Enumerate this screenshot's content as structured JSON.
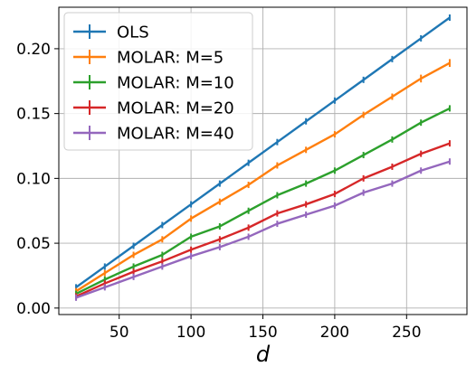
{
  "chart_data": {
    "type": "line",
    "title": "",
    "xlabel": "d",
    "ylabel": "",
    "xlim": [
      8,
      292
    ],
    "ylim": [
      -0.005,
      0.232
    ],
    "grid": true,
    "legend_position": "top-left",
    "x_ticks": [
      50,
      100,
      150,
      200,
      250
    ],
    "x_tick_labels": [
      "50",
      "100",
      "150",
      "200",
      "250"
    ],
    "y_ticks": [
      0.0,
      0.05,
      0.1,
      0.15,
      0.2
    ],
    "y_tick_labels": [
      "0.00",
      "0.05",
      "0.10",
      "0.15",
      "0.20"
    ],
    "x": [
      20,
      40,
      60,
      80,
      100,
      120,
      140,
      160,
      180,
      200,
      220,
      240,
      260,
      280
    ],
    "series": [
      {
        "name": "OLS",
        "color": "#1f77b4",
        "values": [
          0.016,
          0.032,
          0.048,
          0.064,
          0.08,
          0.096,
          0.112,
          0.128,
          0.144,
          0.16,
          0.176,
          0.192,
          0.208,
          0.224
        ],
        "errors": [
          0.0005,
          0.0005,
          0.0005,
          0.0005,
          0.0005,
          0.0005,
          0.0005,
          0.0005,
          0.0005,
          0.0005,
          0.0005,
          0.0005,
          0.0005,
          0.0005
        ]
      },
      {
        "name": "MOLAR: M=5",
        "color": "#ff7f0e",
        "values": [
          0.013,
          0.027,
          0.041,
          0.053,
          0.069,
          0.082,
          0.095,
          0.11,
          0.122,
          0.134,
          0.149,
          0.163,
          0.177,
          0.189
        ],
        "errors": [
          0.0008,
          0.001,
          0.0012,
          0.0015,
          0.002,
          0.0015,
          0.0015,
          0.002,
          0.002,
          0.002,
          0.0015,
          0.002,
          0.003,
          0.003
        ]
      },
      {
        "name": "MOLAR: M=10",
        "color": "#2ca02c",
        "values": [
          0.011,
          0.022,
          0.032,
          0.041,
          0.055,
          0.063,
          0.075,
          0.087,
          0.096,
          0.106,
          0.118,
          0.13,
          0.143,
          0.154
        ],
        "errors": [
          0.0008,
          0.001,
          0.0012,
          0.0012,
          0.0015,
          0.0015,
          0.0015,
          0.002,
          0.002,
          0.0015,
          0.0015,
          0.002,
          0.002,
          0.002
        ]
      },
      {
        "name": "MOLAR: M=20",
        "color": "#d62728",
        "values": [
          0.009,
          0.019,
          0.028,
          0.036,
          0.045,
          0.053,
          0.062,
          0.073,
          0.08,
          0.088,
          0.1,
          0.109,
          0.119,
          0.127
        ],
        "errors": [
          0.0008,
          0.001,
          0.001,
          0.0012,
          0.0012,
          0.0012,
          0.0015,
          0.0015,
          0.0015,
          0.0015,
          0.0015,
          0.002,
          0.002,
          0.0015
        ]
      },
      {
        "name": "MOLAR: M=40",
        "color": "#9467bd",
        "values": [
          0.008,
          0.016,
          0.024,
          0.032,
          0.04,
          0.047,
          0.055,
          0.065,
          0.072,
          0.079,
          0.089,
          0.096,
          0.106,
          0.113
        ],
        "errors": [
          0.0006,
          0.0008,
          0.001,
          0.001,
          0.001,
          0.001,
          0.0012,
          0.0012,
          0.0012,
          0.0012,
          0.0012,
          0.0015,
          0.0015,
          0.0012
        ]
      }
    ]
  }
}
